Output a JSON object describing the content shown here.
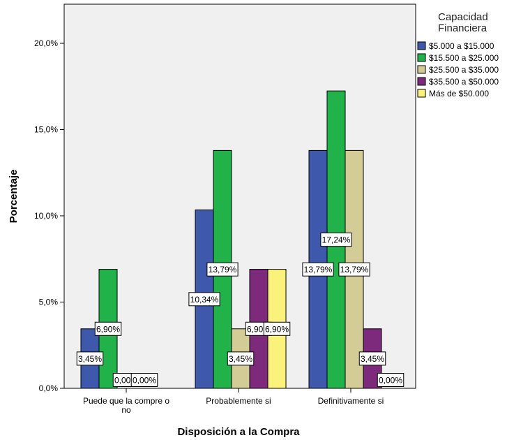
{
  "chart_data": {
    "type": "bar",
    "xlabel": "Disposición a la Compra",
    "ylabel": "Porcentaje",
    "ylim": [
      0,
      22
    ],
    "yticks": [
      0,
      5,
      10,
      15,
      20
    ],
    "ytick_labels": [
      "0,0%",
      "5,0%",
      "10,0%",
      "15,0%",
      "20,0%"
    ],
    "categories": [
      "Puede que la compre o no",
      "Probablemente si",
      "Definitivamente si"
    ],
    "category_label_lines": [
      [
        "Puede que la compre o",
        "no"
      ],
      [
        "Probablemente si"
      ],
      [
        "Definitivamente si"
      ]
    ],
    "legend": {
      "title_lines": [
        "Capacidad",
        "Financiera"
      ],
      "placement": "right"
    },
    "grid": false,
    "series": [
      {
        "name": "$5.000 a $15.000",
        "color": "#3e58ac",
        "values": [
          3.45,
          10.34,
          13.79
        ],
        "labels": [
          "3,45%",
          "10,34%",
          "13,79%"
        ]
      },
      {
        "name": "$15.500 a $25.000",
        "color": "#21b24a",
        "values": [
          6.9,
          13.79,
          17.24
        ],
        "labels": [
          "6,90%",
          "13,79%",
          "17,24%"
        ]
      },
      {
        "name": "$25.500 a $35.000",
        "color": "#d4cc97",
        "values": [
          0.0,
          3.45,
          13.79
        ],
        "labels": [
          "0,00%",
          "3,45%",
          "13,79%"
        ]
      },
      {
        "name": "$35.500 a $50.000",
        "color": "#7d2a7c",
        "values": [
          0.0,
          6.9,
          3.45
        ],
        "labels": [
          "0,00%",
          "6,90%",
          "3,45%"
        ]
      },
      {
        "name": "Más de $50.000",
        "color": "#fbf27b",
        "values": [
          null,
          6.9,
          0.0
        ],
        "labels": [
          null,
          "6,90%",
          "0,00%"
        ]
      }
    ]
  }
}
